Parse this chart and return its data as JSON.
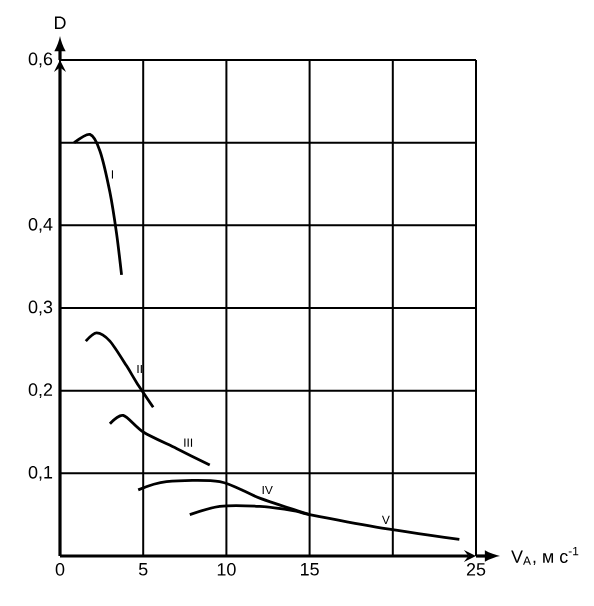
{
  "chart_data": {
    "type": "line",
    "xlabel": "V$_{A}$, м с$^{-1}$",
    "ylabel": "D",
    "xlim": [
      0,
      25
    ],
    "ylim": [
      0,
      0.6
    ],
    "xticks": [
      0,
      5,
      10,
      15,
      {
        "value": 20,
        "label": null
      },
      25
    ],
    "yticks": [
      {
        "value": 0.1,
        "label": "0,1"
      },
      {
        "value": 0.2,
        "label": "0,2"
      },
      {
        "value": 0.3,
        "label": "0,3"
      },
      {
        "value": 0.4,
        "label": "0,4"
      },
      {
        "value": 0.5,
        "label": null
      },
      {
        "value": 0.6,
        "label": "0,6"
      }
    ],
    "grid": true,
    "marker": "none",
    "line_style": "solid",
    "series": [
      {
        "name": "I",
        "color": "#000000",
        "x": [
          0.85,
          1.8,
          2.4,
          3.0,
          3.4,
          3.7
        ],
        "values": [
          0.5,
          0.51,
          0.49,
          0.44,
          0.39,
          0.34
        ]
      },
      {
        "name": "II",
        "color": "#000000",
        "x": [
          1.55,
          2.2,
          3.0,
          4.0,
          4.6,
          5.6
        ],
        "values": [
          0.26,
          0.27,
          0.26,
          0.23,
          0.21,
          0.18
        ]
      },
      {
        "name": "III",
        "color": "#000000",
        "x": [
          3.0,
          3.8,
          5.0,
          7.0,
          9.0
        ],
        "values": [
          0.16,
          0.17,
          0.15,
          0.13,
          0.11
        ]
      },
      {
        "name": "IV",
        "color": "#000000",
        "x": [
          4.7,
          6.4,
          9.6,
          12.0,
          15.0
        ],
        "values": [
          0.08,
          0.09,
          0.09,
          0.07,
          0.05
        ]
      },
      {
        "name": "V",
        "color": "#000000",
        "x": [
          7.8,
          9.6,
          12.0,
          14.0,
          15.0,
          19.0,
          24.0
        ],
        "values": [
          0.05,
          0.06,
          0.06,
          0.055,
          0.05,
          0.035,
          0.02
        ]
      }
    ]
  }
}
